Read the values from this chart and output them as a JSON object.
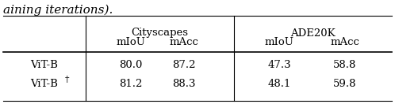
{
  "caption": "aining iterations).",
  "col_groups": [
    {
      "label": "Cityscapes",
      "cols": [
        "mIoU",
        "mAcc"
      ]
    },
    {
      "label": "ADE20K",
      "cols": [
        "mIoU",
        "mAcc"
      ]
    }
  ],
  "rows": [
    {
      "name": "ViT-B",
      "dagger": false,
      "values": [
        "80.0",
        "87.2",
        "47.3",
        "58.8"
      ]
    },
    {
      "name": "ViT-B",
      "dagger": true,
      "values": [
        "81.2",
        "88.3",
        "48.1",
        "59.8"
      ]
    }
  ],
  "background": "#ffffff",
  "font_size": 9.5,
  "caption_font_size": 11
}
